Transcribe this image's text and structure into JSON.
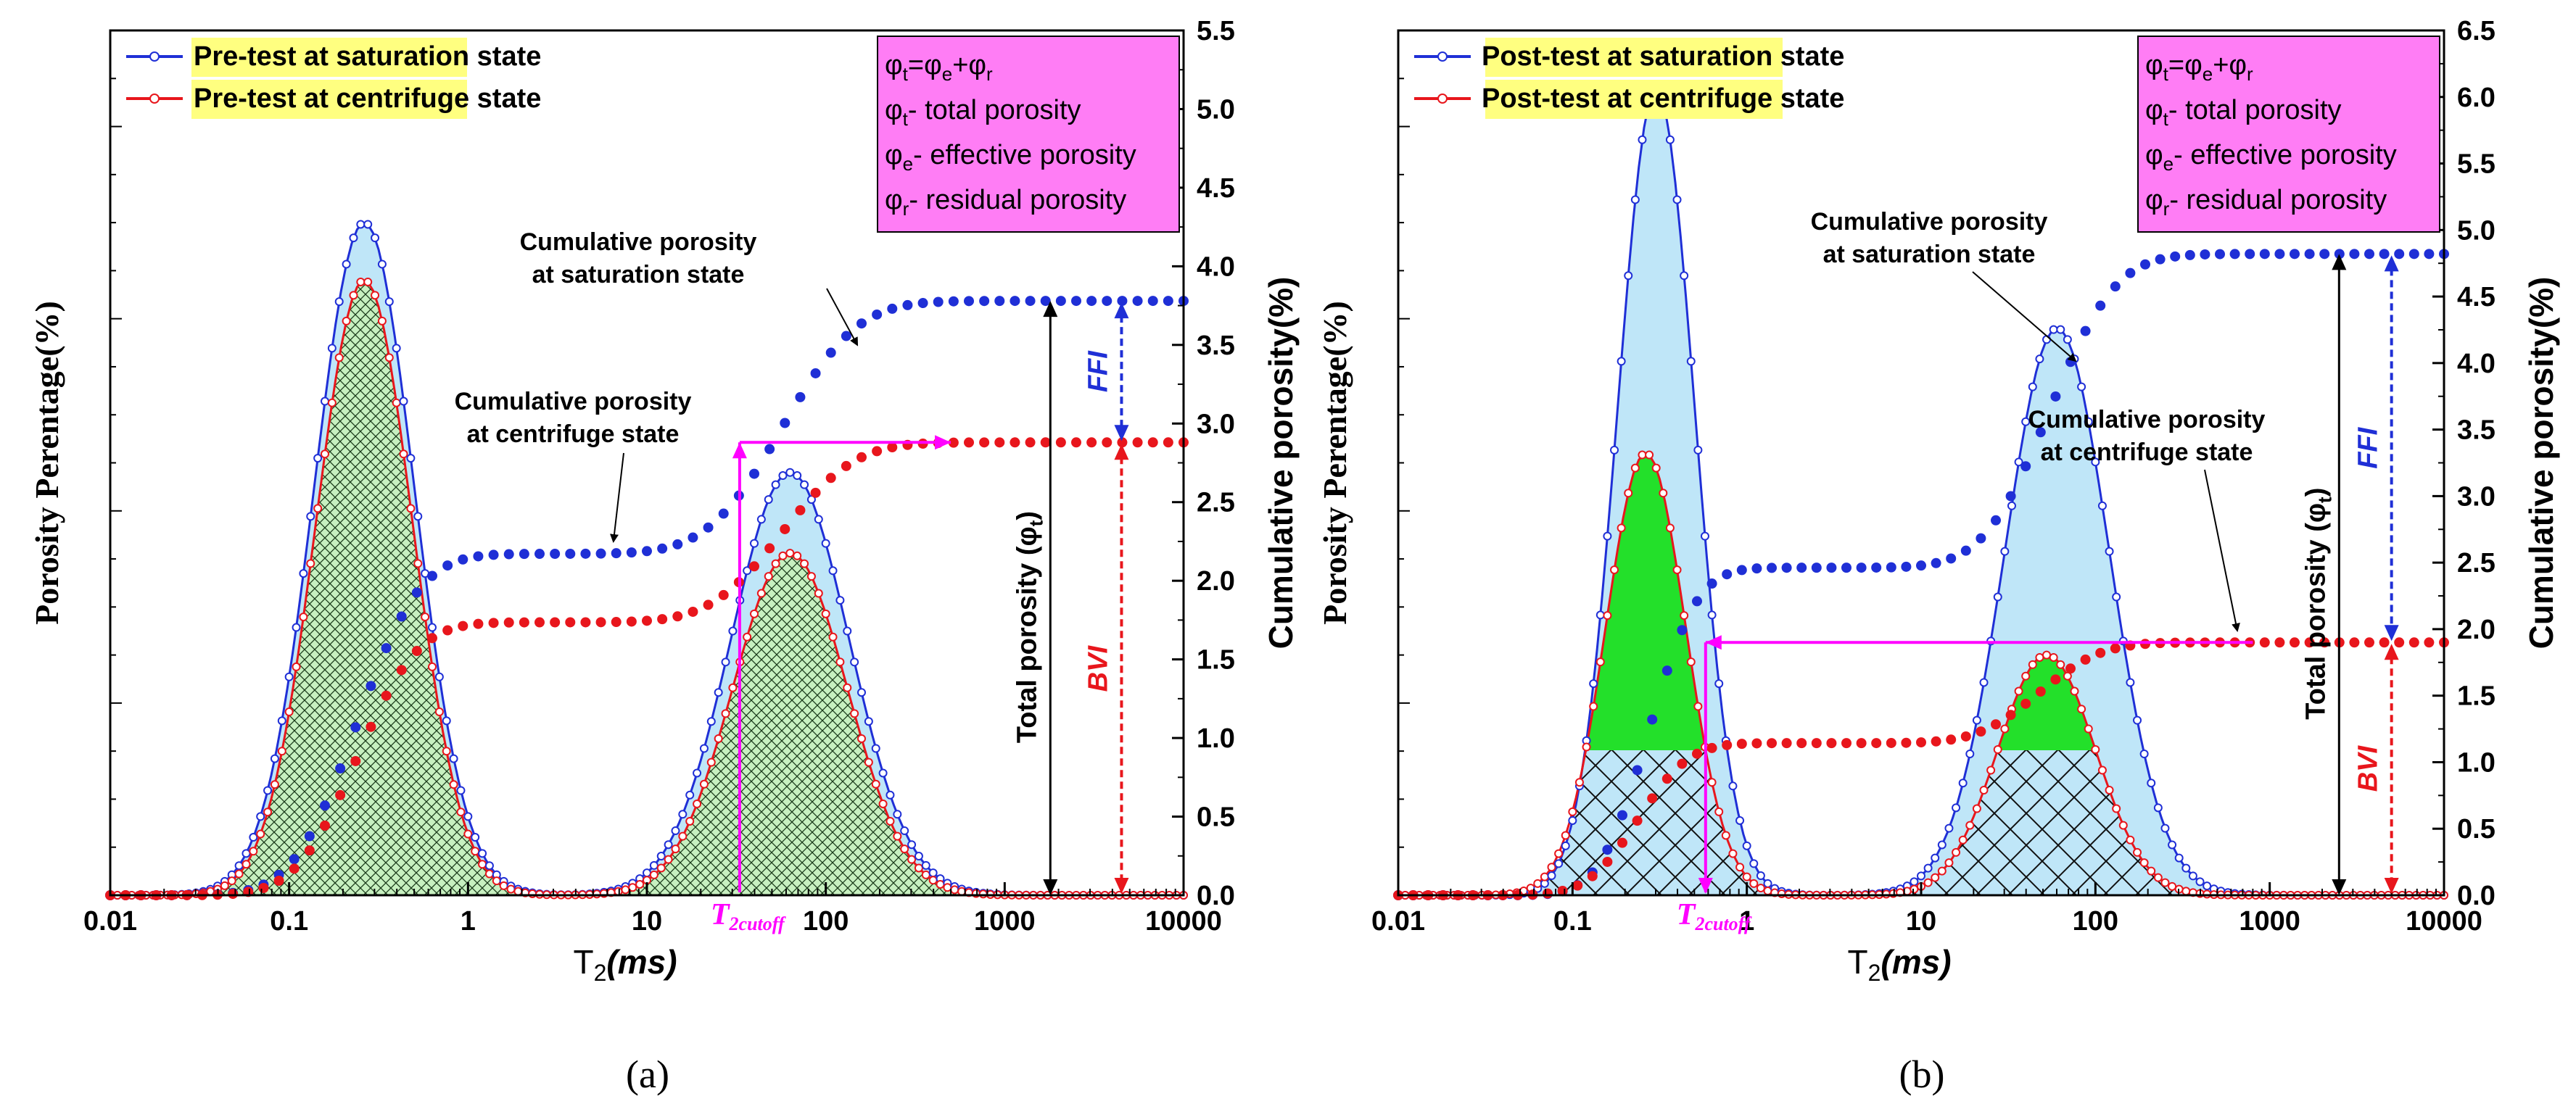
{
  "chart_data": [
    {
      "type": "area",
      "panel_label": "(a)",
      "x_scale": "log",
      "xlim": [
        0.01,
        10000
      ],
      "xlabel_main": "T",
      "xlabel_sub": "2",
      "xlabel_unit": "(ms)",
      "ylabel_left": "Porosity Perentage(%)",
      "ylabel_right": "Cumulative porosity(%)",
      "x_ticks": [
        "0.01",
        "0.1",
        "1",
        "10",
        "100",
        "1000",
        "10000"
      ],
      "right_ylim": [
        0,
        5.5
      ],
      "right_ticks": [
        "0.0",
        "0.5",
        "1.0",
        "1.5",
        "2.0",
        "2.5",
        "3.0",
        "3.5",
        "4.0",
        "4.5",
        "5.0",
        "5.5"
      ],
      "series": [
        {
          "name": "Pre-test at saturation state",
          "color": "#1f2fd6",
          "fill": "#bfe6f8",
          "peaks": [
            {
              "log_center": -0.58,
              "sigma": 0.28,
              "height": 3.5
            },
            {
              "log_center": 1.8,
              "sigma": 0.33,
              "height": 2.2
            }
          ]
        },
        {
          "name": "Pre-test at centrifuge state",
          "color": "#e8161c",
          "fill": "#c7f0c0",
          "peaks": [
            {
              "log_center": -0.58,
              "sigma": 0.27,
              "height": 3.2
            },
            {
              "log_center": 1.8,
              "sigma": 0.32,
              "height": 1.78
            }
          ]
        }
      ],
      "cumulative": [
        {
          "name": "Cumulative porosity at saturation state",
          "final": 3.78
        },
        {
          "name": "Cumulative porosity at centrifuge state",
          "final": 2.88
        }
      ],
      "annotations": {
        "formula_lines": [
          {
            "a": "φ",
            "sub": "t",
            "b": "=φ",
            "sub2": "e",
            "c": "+φ",
            "sub3": "r",
            "d": ""
          },
          {
            "a": "φ",
            "sub": "t",
            "b": "- total porosity"
          },
          {
            "a": "φ",
            "sub": "e",
            "b": "- effective porosity"
          },
          {
            "a": "φ",
            "sub": "r",
            "b": "- residual porosity"
          }
        ],
        "cum_sat_label": [
          "Cumulative porosity",
          "at saturation state"
        ],
        "cum_cen_label": [
          "Cumulative porosity",
          "at centrifuge state"
        ],
        "total_porosity": "Total porosity (φ",
        "total_porosity_sub": "t",
        "total_porosity_end": ")",
        "ffi": "FFI",
        "bvi": "BVI",
        "t2cutoff_main": "T",
        "t2cutoff_sub": "2cutoff",
        "t2cutoff_value": 33,
        "arrow_x": 1800,
        "ffi_x": 4500
      }
    },
    {
      "type": "area",
      "panel_label": "(b)",
      "x_scale": "log",
      "xlim": [
        0.01,
        10000
      ],
      "xlabel_main": "T",
      "xlabel_sub": "2",
      "xlabel_unit": "(ms)",
      "ylabel_left": "Porosity Perentage(%)",
      "ylabel_right": "Cumulative porosity(%)",
      "x_ticks": [
        "0.01",
        "0.1",
        "1",
        "10",
        "100",
        "1000",
        "10000"
      ],
      "right_ylim": [
        0,
        6.5
      ],
      "right_ticks": [
        "0.0",
        "0.5",
        "1.0",
        "1.5",
        "2.0",
        "2.5",
        "3.0",
        "3.5",
        "4.0",
        "4.5",
        "5.0",
        "5.5",
        "6.0",
        "6.5"
      ],
      "series": [
        {
          "name": "Post-test at saturation state",
          "color": "#1f2fd6",
          "fill": "#bfe6f8",
          "peaks": [
            {
              "log_center": -0.52,
              "sigma": 0.22,
              "height": 4.2
            },
            {
              "log_center": 1.78,
              "sigma": 0.3,
              "height": 2.95
            }
          ]
        },
        {
          "name": "Post-test at centrifuge state",
          "color": "#e8161c",
          "fill": "#23e02a",
          "peaks": [
            {
              "log_center": -0.58,
              "sigma": 0.23,
              "height": 2.3
            },
            {
              "log_center": 1.72,
              "sigma": 0.28,
              "height": 1.25
            }
          ]
        }
      ],
      "cumulative": [
        {
          "name": "Cumulative porosity at saturation state",
          "final": 4.82
        },
        {
          "name": "Cumulative porosity at centrifuge state",
          "final": 1.9
        }
      ],
      "annotations": {
        "formula_lines": [
          {
            "a": "φ",
            "sub": "t",
            "b": "=φ",
            "sub2": "e",
            "c": "+φ",
            "sub3": "r",
            "d": ""
          },
          {
            "a": "φ",
            "sub": "t",
            "b": "- total porosity"
          },
          {
            "a": "φ",
            "sub": "e",
            "b": "- effective porosity"
          },
          {
            "a": "φ",
            "sub": "r",
            "b": "- residual porosity"
          }
        ],
        "cum_sat_label": [
          "Cumulative porosity",
          "at saturation state"
        ],
        "cum_cen_label": [
          "Cumulative porosity",
          "at centrifuge state"
        ],
        "total_porosity": "Total porosity (φ",
        "total_porosity_sub": "t",
        "total_porosity_end": ")",
        "ffi": "FFI",
        "bvi": "BVI",
        "t2cutoff_main": "T",
        "t2cutoff_sub": "2cutoff",
        "t2cutoff_value": 0.58,
        "arrow_x": 2500,
        "ffi_x": 5000
      }
    }
  ]
}
